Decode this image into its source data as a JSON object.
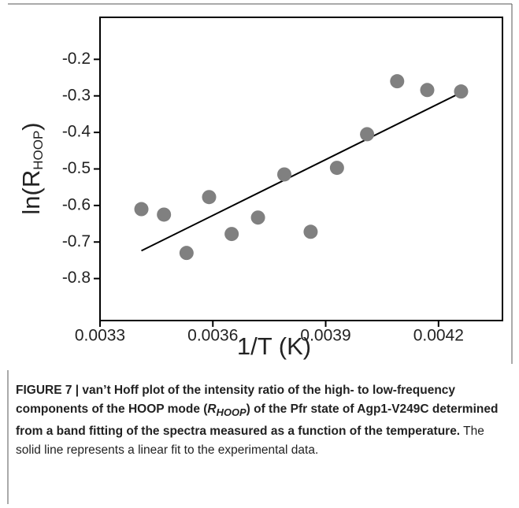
{
  "chart_data": {
    "type": "scatter",
    "y_label": [
      "ln(R",
      "HOOP",
      ")"
    ],
    "x_label": "1/T (K)",
    "xlim": [
      0.0033,
      0.00437
    ],
    "xticks": [
      0.0033,
      0.0036,
      0.0039,
      0.0042
    ],
    "ylim": [
      -0.915,
      -0.085
    ],
    "yticks": [
      -0.8,
      -0.7,
      -0.6,
      -0.5,
      -0.4,
      -0.3,
      -0.2
    ],
    "point_color": "#808080",
    "line_color": "#000000",
    "points": {
      "x": [
        0.00341,
        0.00347,
        0.00353,
        0.00359,
        0.00365,
        0.00372,
        0.00379,
        0.00386,
        0.00393,
        0.00401,
        0.00409,
        0.00417,
        0.00426
      ],
      "y": [
        -0.61,
        -0.625,
        -0.73,
        -0.577,
        -0.678,
        -0.633,
        -0.515,
        -0.672,
        -0.497,
        -0.405,
        -0.26,
        -0.284,
        -0.288
      ]
    },
    "fit": {
      "x": [
        0.00341,
        0.00426
      ],
      "y": [
        -0.724,
        -0.291
      ]
    }
  },
  "caption": {
    "bold": "FIGURE 7 | van’t Hoff plot of the intensity ratio of the high- to low-frequency components of the HOOP mode (",
    "symbol": "R",
    "symbol_sub": "HOOP",
    "bold_end": ") of the Pfr state of Agp1-V249C determined from a band fitting of the spectra measured as a function of the temperature.",
    "text": " The solid line represents a linear fit to the experimental data."
  }
}
